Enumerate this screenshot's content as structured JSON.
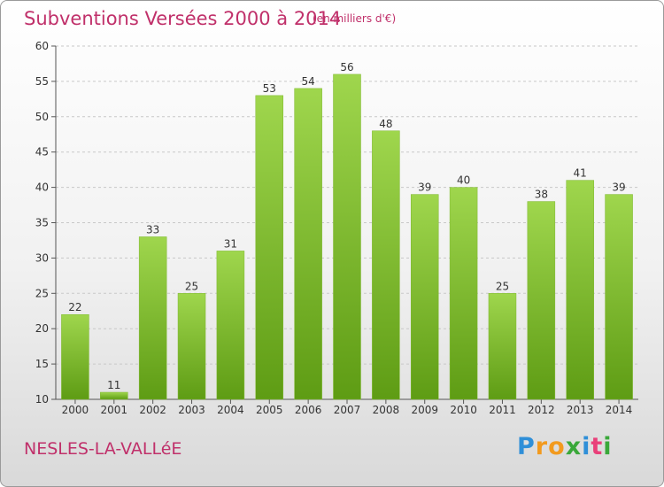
{
  "chart_data": {
    "type": "bar",
    "title": "Subventions Versées 2000 à 2014",
    "subtitle": "(en milliers d'€)",
    "categories": [
      "2000",
      "2001",
      "2002",
      "2003",
      "2004",
      "2005",
      "2006",
      "2007",
      "2008",
      "2009",
      "2010",
      "2011",
      "2012",
      "2013",
      "2014"
    ],
    "values": [
      22,
      11,
      33,
      25,
      31,
      53,
      54,
      56,
      48,
      39,
      40,
      25,
      38,
      41,
      39
    ],
    "ylim": [
      10,
      60
    ],
    "yticks": [
      10,
      15,
      20,
      25,
      30,
      35,
      40,
      45,
      50,
      55,
      60
    ],
    "grid": true,
    "bar_color_top": "#9fd64d",
    "bar_color_bottom": "#5e9c14"
  },
  "commune": "NESLES-LA-VALLéE",
  "logo": {
    "text": "Proxiti",
    "letters": [
      "P",
      "r",
      "o",
      "x",
      "i",
      "t",
      "i"
    ],
    "colors": [
      "#2f8fd8",
      "#f29a1e",
      "#f29a1e",
      "#3aa83a",
      "#2f8fd8",
      "#e9407a",
      "#3aa83a"
    ]
  }
}
